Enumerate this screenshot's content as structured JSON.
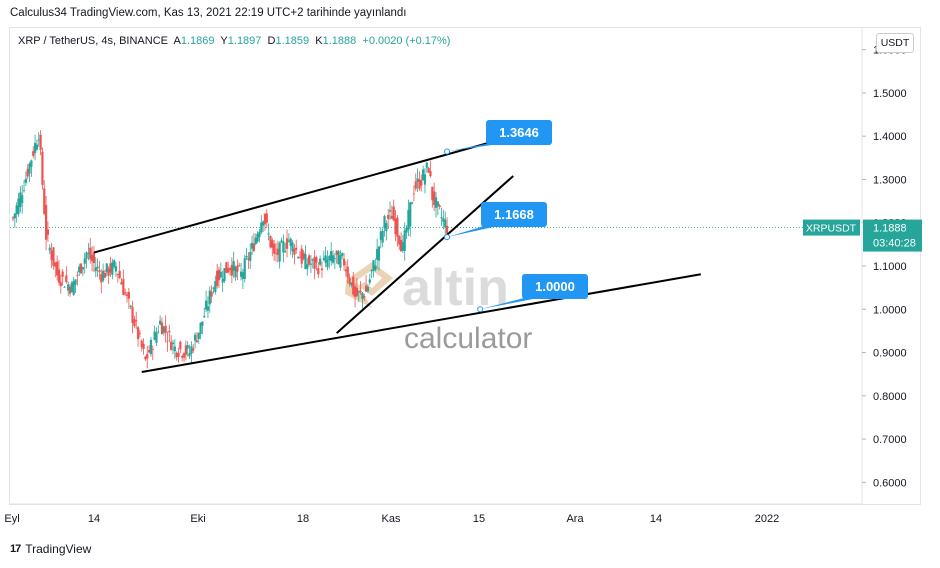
{
  "header": {
    "published": "Calculus34 TradingView.com, Kas 13, 2021 22:19 UTC+2 tarihinde yayınlandı"
  },
  "legend": {
    "symbol": "XRP / TetherUS, 4s, BINANCE",
    "a_label": "A",
    "a_value": "1.1869",
    "y_label": "Y",
    "y_value": "1.1897",
    "d_label": "D",
    "d_value": "1.1859",
    "k_label": "K",
    "k_value": "1.1888",
    "change": "+0.0020 (+0.17%)"
  },
  "currency_button": "USDT",
  "footer": {
    "brand": "TradingView",
    "logo": "17"
  },
  "watermark": {
    "word": "altin",
    "sub": "calculator"
  },
  "colors": {
    "up": "#26a69a",
    "down": "#ef5350",
    "callout": "#2196f3",
    "price_tag": "#26a69a"
  },
  "chart_data": {
    "type": "candlestick",
    "symbol": "XRPUSDT",
    "last_price": "1.1888",
    "countdown": "03:40:28",
    "ylim": [
      0.55,
      1.65
    ],
    "y_ticks": [
      "1.6000",
      "1.5000",
      "1.4000",
      "1.3000",
      "1.2000",
      "1.1000",
      "1.0000",
      "0.9000",
      "0.8000",
      "0.7000",
      "0.6000"
    ],
    "x_ticks": [
      "Eyl",
      "14",
      "Eki",
      "18",
      "Kas",
      "15",
      "Ara",
      "14",
      "2022"
    ],
    "close_path": [
      [
        0,
        1.21
      ],
      [
        3,
        1.29
      ],
      [
        7,
        1.41
      ],
      [
        9,
        1.17
      ],
      [
        12,
        1.08
      ],
      [
        16,
        1.05
      ],
      [
        20,
        1.13
      ],
      [
        24,
        1.08
      ],
      [
        28,
        1.1
      ],
      [
        33,
        0.97
      ],
      [
        36,
        0.88
      ],
      [
        40,
        0.97
      ],
      [
        44,
        0.91
      ],
      [
        48,
        0.9
      ],
      [
        51,
        0.96
      ],
      [
        55,
        1.07
      ],
      [
        59,
        1.1
      ],
      [
        62,
        1.08
      ],
      [
        65,
        1.14
      ],
      [
        68,
        1.22
      ],
      [
        71,
        1.12
      ],
      [
        75,
        1.16
      ],
      [
        79,
        1.11
      ],
      [
        83,
        1.1
      ],
      [
        87,
        1.12
      ],
      [
        90,
        1.11
      ],
      [
        93,
        1.03
      ],
      [
        96,
        1.04
      ],
      [
        99,
        1.13
      ],
      [
        101,
        1.2
      ],
      [
        103,
        1.22
      ],
      [
        106,
        1.14
      ],
      [
        109,
        1.28
      ],
      [
        111,
        1.3
      ],
      [
        113,
        1.33
      ],
      [
        114,
        1.26
      ],
      [
        116,
        1.22
      ],
      [
        118,
        1.19
      ]
    ],
    "trendlines": [
      {
        "points": [
          [
            22,
            1.131
          ],
          [
            146,
            1.424
          ]
        ]
      },
      {
        "points": [
          [
            35,
            0.855
          ],
          [
            187,
            1.081
          ]
        ]
      },
      {
        "points": [
          [
            88,
            0.945
          ],
          [
            136,
            1.308
          ]
        ]
      }
    ],
    "callouts": [
      {
        "label": "1.3646",
        "anchor": [
          118,
          1.3646
        ]
      },
      {
        "label": "1.1668",
        "anchor": [
          118,
          1.1668
        ]
      },
      {
        "label": "1.0000",
        "anchor": [
          127,
          1.0
        ]
      }
    ]
  }
}
